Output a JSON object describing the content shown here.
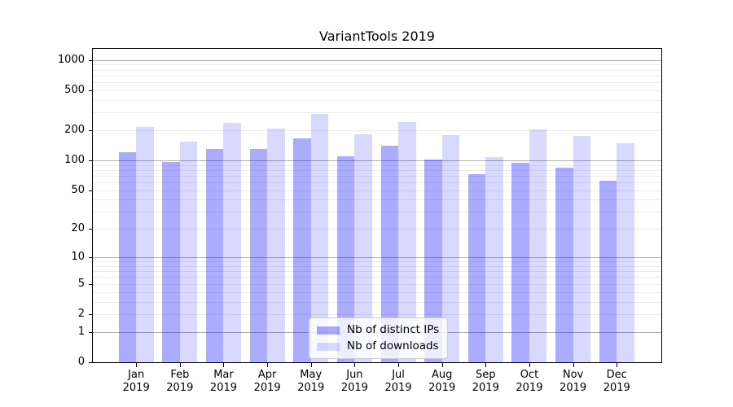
{
  "title": "VariantTools 2019",
  "chart_data": {
    "type": "bar",
    "title": "VariantTools 2019",
    "categories": [
      "Jan 2019",
      "Feb 2019",
      "Mar 2019",
      "Apr 2019",
      "May 2019",
      "Jun 2019",
      "Jul 2019",
      "Aug 2019",
      "Sep 2019",
      "Oct 2019",
      "Nov 2019",
      "Dec 2019"
    ],
    "series": [
      {
        "name": "Nb of distinct IPs",
        "color": "rgba(0,0,255,0.33)",
        "values": [
          120,
          97,
          130,
          129,
          165,
          110,
          140,
          102,
          72,
          95,
          84,
          63
        ]
      },
      {
        "name": "Nb of downloads",
        "color": "rgba(0,0,255,0.15)",
        "values": [
          215,
          154,
          235,
          206,
          291,
          184,
          241,
          178,
          108,
          205,
          176,
          148
        ]
      }
    ],
    "xlabel": "",
    "ylabel": "",
    "yscale": "symlog-like log10(value+1)",
    "ylim": [
      0,
      1293
    ],
    "yticks_labeled": [
      0,
      1,
      2,
      5,
      10,
      20,
      50,
      100,
      200,
      500,
      1000
    ],
    "ygrid_major": [
      1,
      10,
      100,
      1000
    ],
    "ygrid_minor": [
      2,
      3,
      4,
      5,
      6,
      7,
      8,
      9,
      20,
      30,
      40,
      50,
      60,
      70,
      80,
      90,
      200,
      300,
      400,
      500,
      600,
      700,
      800,
      900
    ],
    "grid": true,
    "legend_position": "lower center",
    "legend_items": [
      "Nb of distinct IPs",
      "Nb of downloads"
    ]
  },
  "colors": {
    "bar_ips": "rgba(0,0,255,0.33)",
    "bar_downloads": "rgba(0,0,255,0.15)",
    "grid_major": "#b0b0b0",
    "grid_minor": "#ececec",
    "spine": "#000000",
    "legend_border": "#cccccc"
  }
}
